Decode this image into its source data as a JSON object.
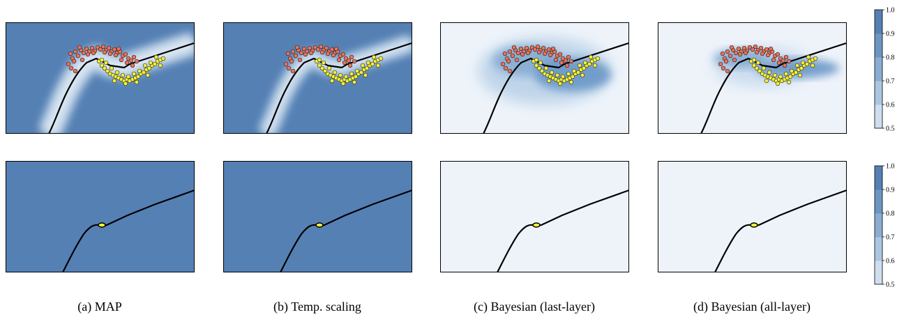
{
  "figure": {
    "captions": [
      "(a) MAP",
      "(b) Temp. scaling",
      "(c) Bayesian (last-layer)",
      "(d) Bayesian (all-layer)"
    ]
  },
  "colors": {
    "confident": "#5580b4",
    "uncertain": "#eef3fa",
    "class_0": "#e8745c",
    "class_1": "#f3ef3a",
    "boundary": "#000000"
  },
  "chart_data": [
    {
      "type": "heatmap",
      "method": "MAP",
      "row": "top",
      "data_points_shown": true,
      "colorbar": {
        "ticks": [
          "0.5",
          "0.6",
          "0.7",
          "0.8",
          "0.9",
          "1.0"
        ],
        "range": [
          0.5,
          1.0
        ]
      }
    },
    {
      "type": "heatmap",
      "method": "Temp. scaling",
      "row": "top",
      "data_points_shown": true
    },
    {
      "type": "heatmap",
      "method": "Bayesian (last-layer)",
      "row": "top",
      "data_points_shown": true
    },
    {
      "type": "heatmap",
      "method": "Bayesian (all-layer)",
      "row": "top",
      "data_points_shown": true,
      "colorbar": {
        "ticks": [
          "0.5",
          "0.6",
          "0.7",
          "0.8",
          "0.9",
          "1.0"
        ],
        "range": [
          0.5,
          1.0
        ]
      }
    },
    {
      "type": "heatmap",
      "method": "MAP",
      "row": "bottom",
      "data_points_shown": false,
      "colorbar": {
        "ticks": [
          "0.5",
          "0.6",
          "0.7",
          "0.8",
          "0.9",
          "1.0"
        ],
        "range": [
          0.5,
          1.0
        ]
      }
    },
    {
      "type": "heatmap",
      "method": "Temp. scaling",
      "row": "bottom",
      "data_points_shown": false
    },
    {
      "type": "heatmap",
      "method": "Bayesian (last-layer)",
      "row": "bottom",
      "data_points_shown": false
    },
    {
      "type": "heatmap",
      "method": "Bayesian (all-layer)",
      "row": "bottom",
      "data_points_shown": false,
      "colorbar": {
        "ticks": [
          "0.5",
          "0.6",
          "0.7",
          "0.8",
          "0.9",
          "1.0"
        ],
        "range": [
          0.5,
          1.0
        ]
      }
    }
  ]
}
